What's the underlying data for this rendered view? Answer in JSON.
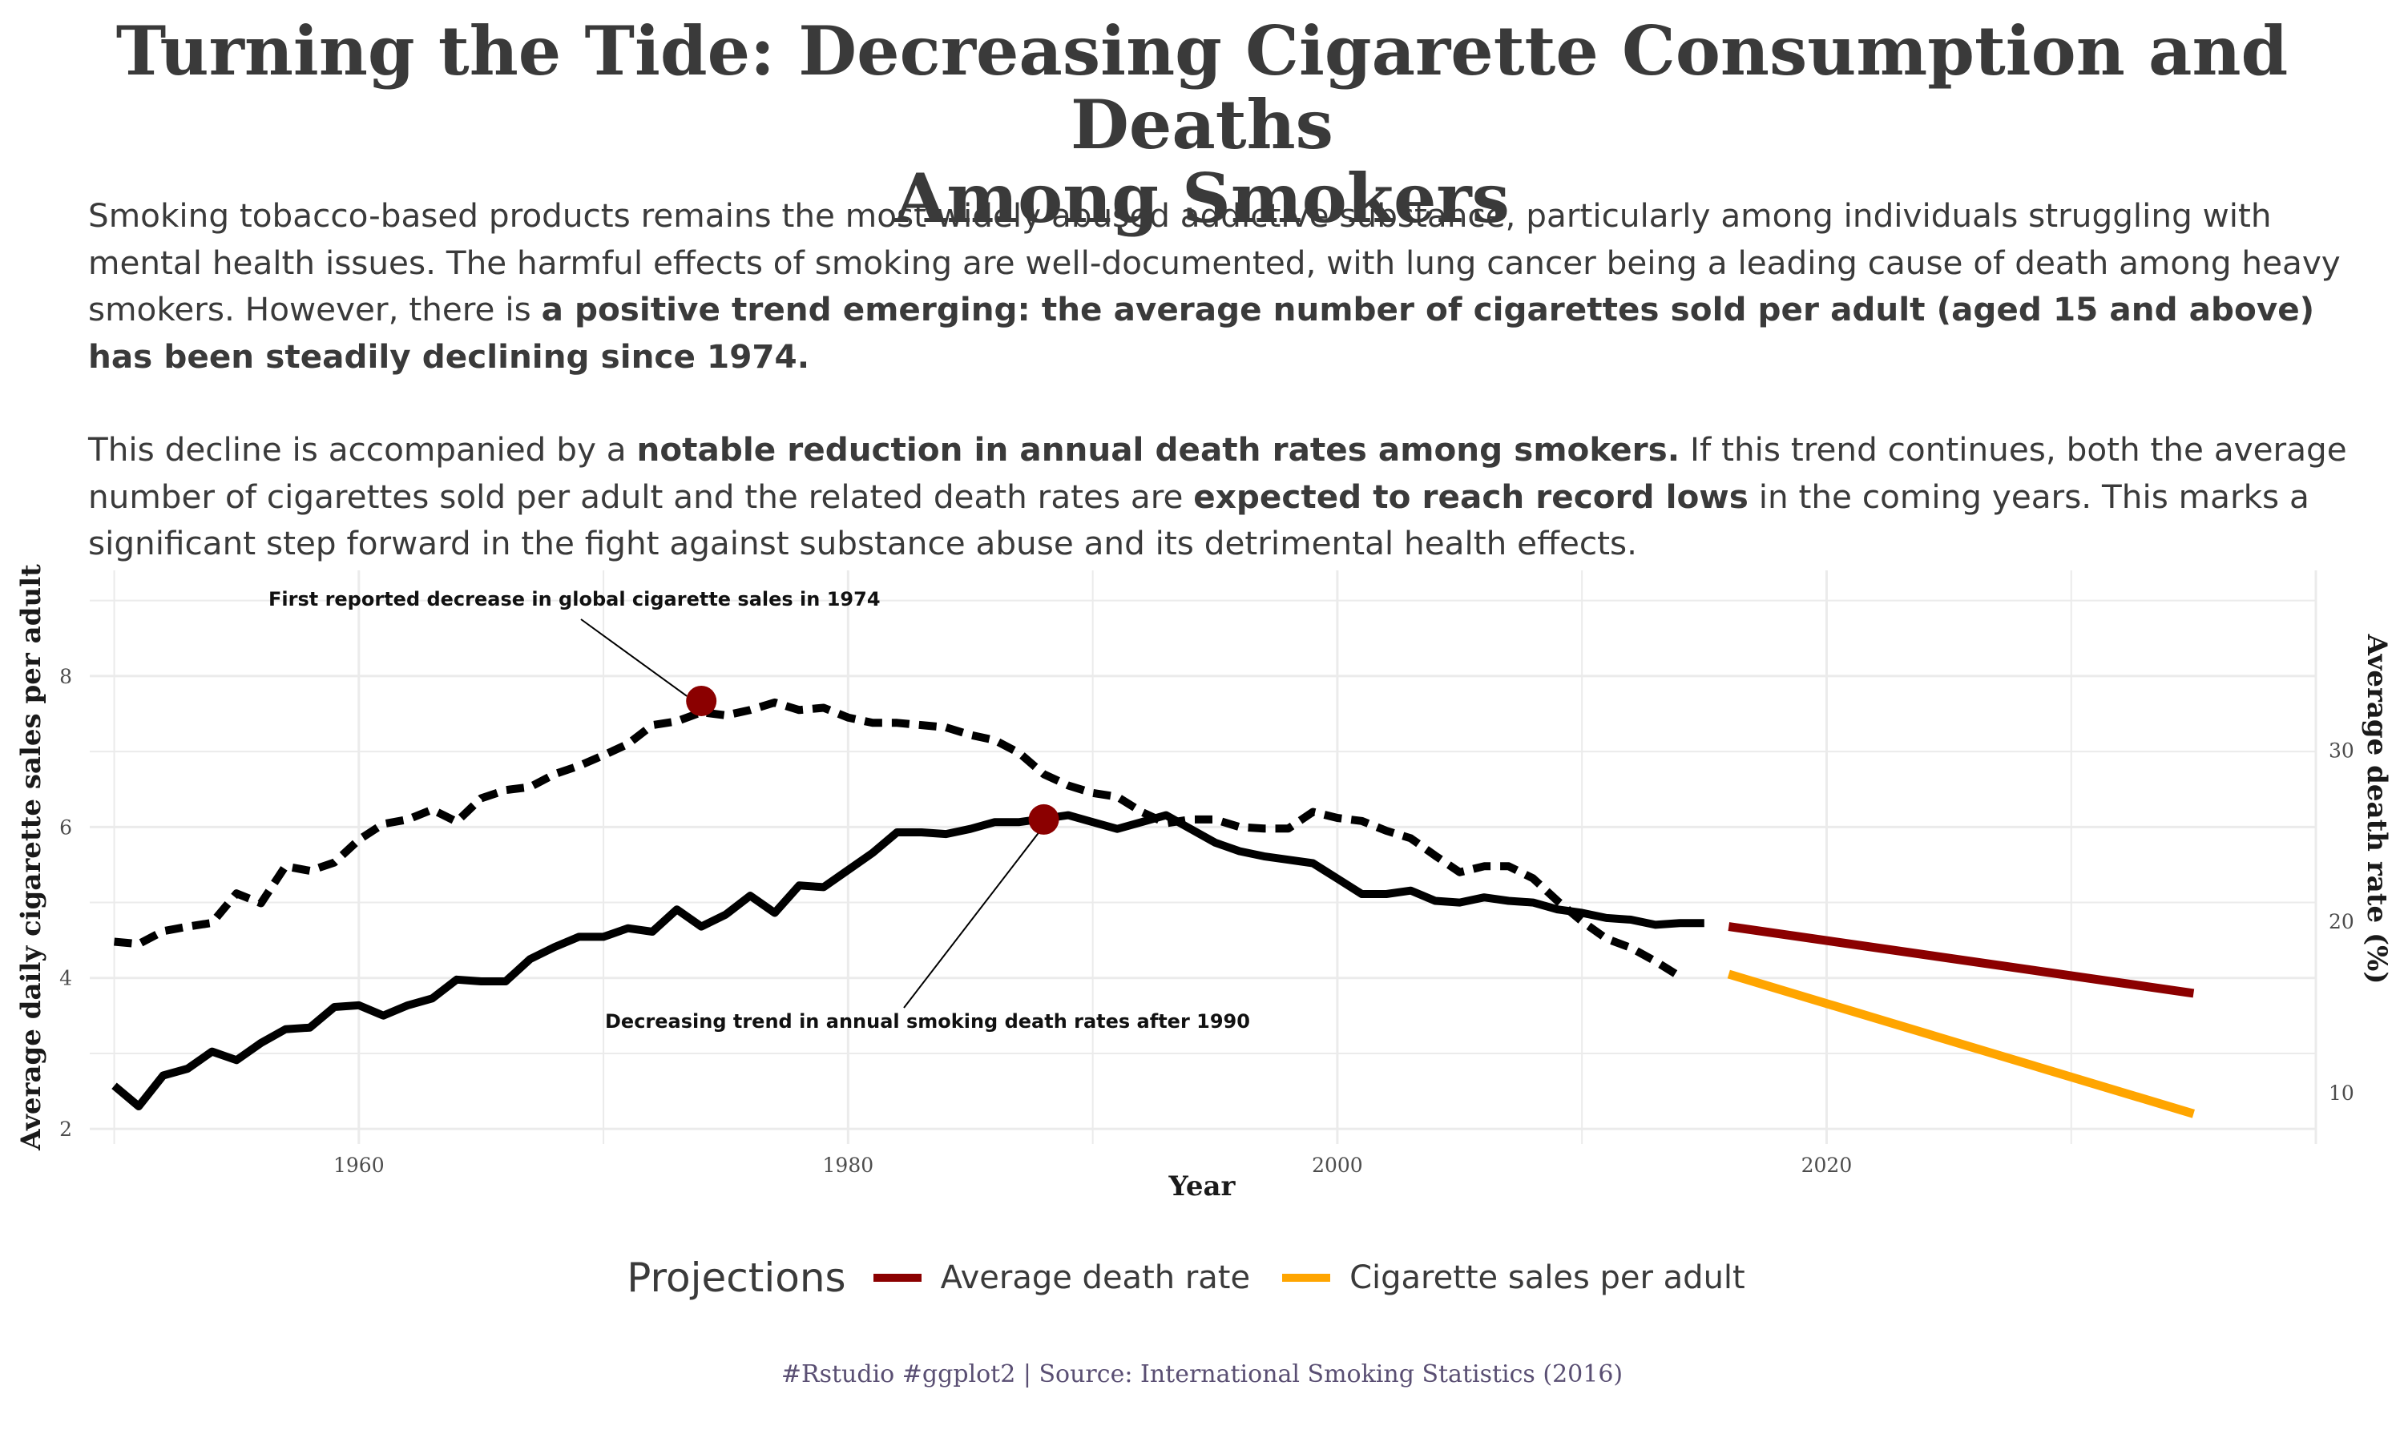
{
  "title_line1": "Turning the Tide: Decreasing Cigarette Consumption and Deaths",
  "title_line2": "Among Smokers",
  "subtitle": {
    "p1_plain": "Smoking tobacco-based products remains the most widely abused addictive substance, particularly among individuals struggling with mental health issues. The harmful effects of smoking are well-documented, with lung cancer being a leading cause of death among heavy smokers. However, there is ",
    "p1_bold": "a positive trend emerging: the average number of cigarettes sold per adult (aged 15 and above) has been steadily declining since 1974.",
    "p2_plain1": "This decline is accompanied by a ",
    "p2_bold1": "notable reduction in annual death rates among smokers.",
    "p2_plain2": " If this trend continues, both the average number of cigarettes sold per adult and the related death rates are ",
    "p2_bold2": "expected to reach record lows",
    "p2_plain3": "  in the coming years. This marks a significant step forward in the fight against substance abuse and its detrimental health effects."
  },
  "legend": {
    "title": "Projections",
    "items": [
      {
        "label": "Average death rate",
        "color": "#8b0000"
      },
      {
        "label": "Cigarette sales per adult",
        "color": "#ffa500"
      }
    ]
  },
  "caption": "#Rstudio #ggplot2 | Source: International Smoking Statistics (2016)",
  "chart_data": {
    "type": "line",
    "xlabel": "Year",
    "ylabel": "Average daily cigarette sales per adult",
    "y2label": "Average death rate (%)",
    "xlim": [
      1949,
      2040
    ],
    "ylim": [
      1.8,
      9.4
    ],
    "y2lim": [
      7.0,
      40.5
    ],
    "x_ticks": [
      1960,
      1980,
      2000,
      2020
    ],
    "y_ticks": [
      2,
      4,
      6,
      8
    ],
    "y2_ticks": [
      10,
      20,
      30
    ],
    "grid": true,
    "legend_position": "bottom",
    "annotations": [
      {
        "text": "First reported decrease in global cigarette sales in 1974",
        "x": 1974,
        "y": 7.67
      },
      {
        "text": "Decreasing trend in annual smoking death rates after 1990",
        "x": 1988,
        "y": 6.1
      }
    ],
    "series": [
      {
        "style": "dashed",
        "axis": "left",
        "color": "#000000",
        "x": [
          1950,
          1951,
          1952,
          1953,
          1954,
          1955,
          1956,
          1957,
          1958,
          1959,
          1960,
          1961,
          1962,
          1963,
          1964,
          1965,
          1966,
          1967,
          1968,
          1969,
          1970,
          1971,
          1972,
          1973,
          1974,
          1975,
          1976,
          1977,
          1978,
          1979,
          1980,
          1981,
          1982,
          1983,
          1984,
          1985,
          1986,
          1987,
          1988,
          1989,
          1990,
          1991,
          1992,
          1993,
          1994,
          1995,
          1996,
          1997,
          1998,
          1999,
          2000,
          2001,
          2002,
          2003,
          2004,
          2005,
          2006,
          2007,
          2008,
          2009,
          2010,
          2011,
          2012,
          2013,
          2014
        ],
        "values": [
          4.48,
          4.45,
          4.62,
          4.68,
          4.73,
          5.12,
          4.99,
          5.48,
          5.42,
          5.53,
          5.83,
          6.04,
          6.1,
          6.23,
          6.07,
          6.38,
          6.49,
          6.53,
          6.7,
          6.81,
          6.95,
          7.1,
          7.35,
          7.4,
          7.52,
          7.48,
          7.55,
          7.65,
          7.55,
          7.58,
          7.45,
          7.38,
          7.38,
          7.35,
          7.32,
          7.22,
          7.15,
          6.98,
          6.7,
          6.55,
          6.45,
          6.4,
          6.2,
          6.05,
          6.1,
          6.1,
          6.0,
          5.98,
          5.98,
          6.2,
          6.12,
          6.08,
          5.95,
          5.85,
          5.62,
          5.4,
          5.48,
          5.48,
          5.32,
          5.02,
          4.75,
          4.52,
          4.4,
          4.22,
          4.02
        ]
      },
      {
        "style": "solid",
        "axis": "right",
        "color": "#000000",
        "x": [
          1950,
          1951,
          1952,
          1953,
          1954,
          1955,
          1956,
          1957,
          1958,
          1959,
          1960,
          1961,
          1962,
          1963,
          1964,
          1965,
          1966,
          1967,
          1968,
          1969,
          1970,
          1971,
          1972,
          1973,
          1974,
          1975,
          1976,
          1977,
          1978,
          1979,
          1980,
          1981,
          1982,
          1983,
          1984,
          1985,
          1986,
          1987,
          1988,
          1989,
          1990,
          1991,
          1992,
          1993,
          1994,
          1995,
          1996,
          1997,
          1998,
          1999,
          2000,
          2001,
          2002,
          2003,
          2004,
          2005,
          2006,
          2007,
          2008,
          2009,
          2010,
          2011,
          2012,
          2013,
          2014,
          2015
        ],
        "values": [
          10.4,
          9.2,
          11.0,
          11.4,
          12.4,
          11.9,
          12.9,
          13.7,
          13.8,
          15.0,
          15.1,
          14.5,
          15.1,
          15.5,
          16.6,
          16.5,
          16.5,
          17.8,
          18.5,
          19.1,
          19.1,
          19.6,
          19.4,
          20.7,
          19.7,
          20.4,
          21.5,
          20.5,
          22.1,
          22.0,
          23.0,
          24.0,
          25.2,
          25.2,
          25.1,
          25.4,
          25.8,
          25.8,
          26.0,
          26.2,
          25.8,
          25.4,
          25.8,
          26.2,
          25.4,
          24.6,
          24.1,
          23.8,
          23.6,
          23.4,
          22.5,
          21.6,
          21.6,
          21.8,
          21.2,
          21.1,
          21.4,
          21.2,
          21.1,
          20.7,
          20.5,
          20.2,
          20.1,
          19.8,
          19.9,
          19.9
        ]
      },
      {
        "name": "Average death rate",
        "style": "projection",
        "axis": "right",
        "color": "#8b0000",
        "x": [
          2016,
          2035
        ],
        "values": [
          19.7,
          15.8
        ]
      },
      {
        "name": "Cigarette sales per adult",
        "style": "projection",
        "axis": "left",
        "color": "#ffa500",
        "x": [
          2016,
          2035
        ],
        "values": [
          4.05,
          2.2
        ]
      }
    ]
  }
}
